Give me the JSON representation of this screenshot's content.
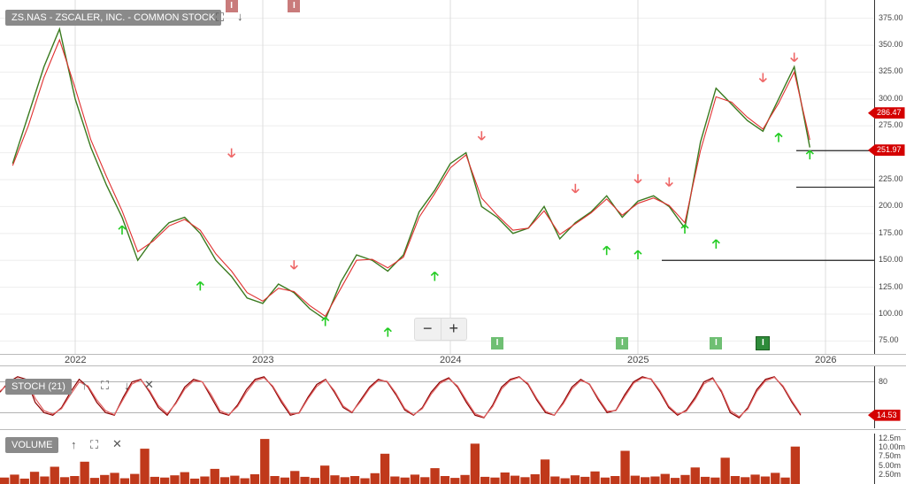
{
  "chart_data": [
    {
      "type": "line",
      "title": "ZS.NAS - ZSCALER, INC. - COMMON STOCK",
      "x_ticks": [
        "2022",
        "2023",
        "2024",
        "2025",
        "2026"
      ],
      "y_ticks": [
        "75.00",
        "100.00",
        "125.00",
        "150.00",
        "175.00",
        "200.00",
        "225.00",
        "250.00",
        "275.00",
        "300.00",
        "325.00",
        "350.00",
        "375.00"
      ],
      "ylim": [
        63,
        392
      ],
      "series": [
        {
          "name": "",
          "role": "price",
          "color": "#3a7a1f",
          "x": [
            "2021-09",
            "2021-10",
            "2021-11",
            "2021-12",
            "2022-01",
            "2022-02",
            "2022-03",
            "2022-04",
            "2022-05",
            "2022-06",
            "2022-07",
            "2022-08",
            "2022-09",
            "2022-10",
            "2022-11",
            "2022-12",
            "2023-01",
            "2023-02",
            "2023-03",
            "2023-04",
            "2023-05",
            "2023-06",
            "2023-07",
            "2023-08",
            "2023-09",
            "2023-10",
            "2023-11",
            "2023-12",
            "2024-01",
            "2024-02",
            "2024-03",
            "2024-04",
            "2024-05",
            "2024-06",
            "2024-07",
            "2024-08",
            "2024-09",
            "2024-10",
            "2024-11",
            "2024-12",
            "2025-01",
            "2025-02",
            "2025-03",
            "2025-04",
            "2025-05",
            "2025-06",
            "2025-07",
            "2025-08",
            "2025-09",
            "2025-10",
            "2025-11",
            "2025-12"
          ],
          "values": [
            240,
            285,
            330,
            365,
            300,
            255,
            220,
            190,
            150,
            170,
            185,
            190,
            175,
            150,
            135,
            115,
            110,
            128,
            120,
            105,
            95,
            130,
            155,
            150,
            140,
            155,
            195,
            215,
            240,
            250,
            200,
            190,
            175,
            180,
            200,
            170,
            185,
            195,
            210,
            190,
            205,
            210,
            200,
            180,
            260,
            310,
            295,
            280,
            270,
            300,
            330,
            255
          ]
        },
        {
          "name": "",
          "role": "moving-average",
          "color": "#e03030",
          "x": [
            "2021-09",
            "2021-10",
            "2021-11",
            "2021-12",
            "2022-01",
            "2022-02",
            "2022-03",
            "2022-04",
            "2022-05",
            "2022-06",
            "2022-07",
            "2022-08",
            "2022-09",
            "2022-10",
            "2022-11",
            "2022-12",
            "2023-01",
            "2023-02",
            "2023-03",
            "2023-04",
            "2023-05",
            "2023-06",
            "2023-07",
            "2023-08",
            "2023-09",
            "2023-10",
            "2023-11",
            "2023-12",
            "2024-01",
            "2024-02",
            "2024-03",
            "2024-04",
            "2024-05",
            "2024-06",
            "2024-07",
            "2024-08",
            "2024-09",
            "2024-10",
            "2024-11",
            "2024-12",
            "2025-01",
            "2025-02",
            "2025-03",
            "2025-04",
            "2025-05",
            "2025-06",
            "2025-07",
            "2025-08",
            "2025-09",
            "2025-10",
            "2025-11",
            "2025-12"
          ],
          "values": [
            238,
            275,
            320,
            355,
            310,
            262,
            228,
            196,
            158,
            168,
            182,
            188,
            178,
            156,
            140,
            120,
            112,
            124,
            121,
            108,
            98,
            124,
            150,
            151,
            143,
            153,
            190,
            212,
            236,
            248,
            208,
            192,
            178,
            180,
            196,
            174,
            184,
            194,
            207,
            192,
            203,
            208,
            201,
            185,
            252,
            302,
            297,
            283,
            272,
            296,
            325,
            262
          ]
        }
      ],
      "horizontal_lines": [
        251.97,
        218,
        150
      ],
      "last_price_label": "286.47",
      "level_label": "251.97",
      "up_signals": [
        {
          "x": "2022-04",
          "y": 178
        },
        {
          "x": "2022-09",
          "y": 126
        },
        {
          "x": "2023-05",
          "y": 93
        },
        {
          "x": "2023-09",
          "y": 83
        },
        {
          "x": "2023-12",
          "y": 135
        },
        {
          "x": "2024-11",
          "y": 159
        },
        {
          "x": "2025-01",
          "y": 155
        },
        {
          "x": "2025-04",
          "y": 179
        },
        {
          "x": "2025-06",
          "y": 165
        },
        {
          "x": "2025-10",
          "y": 264
        },
        {
          "x": "2025-12",
          "y": 248
        }
      ],
      "down_signals": [
        {
          "x": "2022-11",
          "y": 250
        },
        {
          "x": "2023-03",
          "y": 146
        },
        {
          "x": "2024-03",
          "y": 266
        },
        {
          "x": "2024-09",
          "y": 217
        },
        {
          "x": "2025-01",
          "y": 226
        },
        {
          "x": "2025-03",
          "y": 223
        },
        {
          "x": "2025-09",
          "y": 320
        },
        {
          "x": "2025-11",
          "y": 339
        }
      ],
      "events": [
        {
          "x": "2022-11",
          "label": "I",
          "style": "red-top"
        },
        {
          "x": "2023-03",
          "label": "I",
          "style": "red-top"
        },
        {
          "x": "2024-04",
          "label": "I",
          "style": "green"
        },
        {
          "x": "2024-12",
          "label": "I",
          "style": "green"
        },
        {
          "x": "2025-06",
          "label": "I",
          "style": "green"
        },
        {
          "x": "2025-09",
          "label": "I",
          "style": "green-dark"
        }
      ]
    },
    {
      "type": "line",
      "title": "STOCH (21)",
      "y_ticks": [
        "80"
      ],
      "ylim": [
        0,
        100
      ],
      "last_value_label": "14.53",
      "series": [
        {
          "name": "",
          "role": "stoch-k",
          "color": "#8b0000",
          "values": [
            60,
            80,
            90,
            85,
            40,
            20,
            15,
            30,
            60,
            85,
            70,
            40,
            20,
            15,
            50,
            80,
            85,
            60,
            30,
            15,
            40,
            70,
            85,
            80,
            50,
            20,
            15,
            35,
            65,
            85,
            90,
            70,
            40,
            15,
            20,
            50,
            75,
            85,
            60,
            30,
            20,
            45,
            70,
            85,
            80,
            55,
            25,
            15,
            30,
            60,
            80,
            88,
            70,
            40,
            15,
            10,
            35,
            70,
            85,
            90,
            75,
            45,
            20,
            15,
            40,
            70,
            85,
            75,
            45,
            20,
            25,
            55,
            80,
            90,
            85,
            60,
            30,
            15,
            25,
            50,
            80,
            88,
            60,
            20,
            10,
            30,
            65,
            85,
            90,
            70,
            40,
            15
          ]
        },
        {
          "name": "",
          "role": "stoch-d",
          "color": "#e06060",
          "values": [
            62,
            76,
            86,
            84,
            48,
            24,
            17,
            28,
            55,
            80,
            72,
            45,
            24,
            16,
            46,
            76,
            84,
            63,
            34,
            18,
            38,
            66,
            82,
            80,
            55,
            24,
            16,
            32,
            60,
            82,
            88,
            72,
            44,
            18,
            19,
            47,
            71,
            84,
            63,
            33,
            21,
            42,
            67,
            83,
            81,
            58,
            28,
            16,
            28,
            56,
            77,
            86,
            72,
            44,
            18,
            11,
            32,
            66,
            83,
            89,
            77,
            48,
            23,
            15,
            37,
            66,
            83,
            76,
            48,
            23,
            24,
            51,
            77,
            88,
            86,
            63,
            33,
            17,
            23,
            46,
            76,
            86,
            63,
            24,
            12,
            27,
            61,
            82,
            89,
            72,
            43,
            17
          ]
        }
      ]
    },
    {
      "type": "bar",
      "title": "VOLUME",
      "y_ticks": [
        "2.50m",
        "5.00m",
        "7.50m",
        "10.00m",
        "12.5m"
      ],
      "ylim": [
        0,
        14000000
      ],
      "series": [
        {
          "name": "",
          "color": "#c0391b",
          "values": [
            1800000,
            2600000,
            1500000,
            3400000,
            2100000,
            4800000,
            1900000,
            2200000,
            6200000,
            1700000,
            2500000,
            3100000,
            1600000,
            2800000,
            9800000,
            2000000,
            1800000,
            2400000,
            3300000,
            1500000,
            2100000,
            4200000,
            1900000,
            2300000,
            1600000,
            2700000,
            12500000,
            2200000,
            1800000,
            3600000,
            2000000,
            1700000,
            5100000,
            2400000,
            1900000,
            2200000,
            1600000,
            3000000,
            8400000,
            2100000,
            1800000,
            2600000,
            1900000,
            4400000,
            2200000,
            1700000,
            2500000,
            11200000,
            2000000,
            1800000,
            3200000,
            2300000,
            1900000,
            2700000,
            6800000,
            2100000,
            1600000,
            2400000,
            2000000,
            3500000,
            1800000,
            2200000,
            9200000,
            2300000,
            1900000,
            2100000,
            2800000,
            1700000,
            2500000,
            4600000,
            2000000,
            1800000,
            7300000,
            2200000,
            1900000,
            2600000,
            2100000,
            3100000,
            1800000,
            10400000
          ]
        }
      ]
    }
  ],
  "controls": {
    "expand_icon": "expand-icon",
    "download_icon": "arrow-down-icon",
    "up_icon": "arrow-up-icon",
    "close_icon": "close-icon",
    "zoom_out": "−",
    "zoom_in": "+"
  }
}
